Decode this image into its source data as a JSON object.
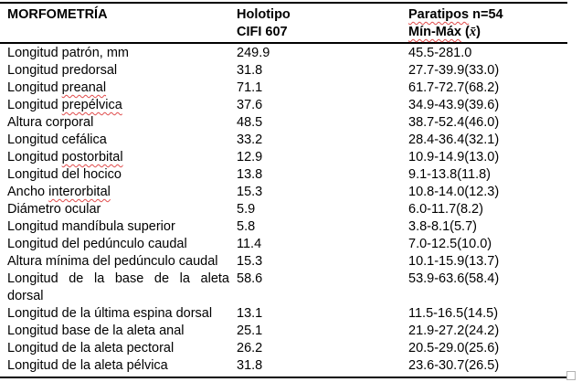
{
  "table": {
    "header": {
      "col1": "MORFOMETRÍA",
      "col2_line1": "Holotipo",
      "col2_line2": "CIFI 607",
      "col3_line1_misspelled": "Paratipos",
      "col3_line1_rest": " n=54",
      "col3_line2_misspelled": "Mín-Máx",
      "col3_line2_open": " (",
      "col3_mean_symbol": "x̄",
      "col3_line2_close": ")"
    },
    "rows": [
      {
        "label": "Longitud patrón, mm",
        "holotipo": "249.9",
        "paratipos": "45.5-281.0"
      },
      {
        "label": "Longitud predorsal",
        "holotipo": "31.8",
        "paratipos": "27.7-39.9(33.0)"
      },
      {
        "label": "Longitud preanal",
        "squiggle": "preanal",
        "holotipo": "71.1",
        "paratipos": "61.7-72.7(68.2)"
      },
      {
        "label": "Longitud prepélvica",
        "squiggle": "prepélvica",
        "holotipo": "37.6",
        "paratipos": "34.9-43.9(39.6)"
      },
      {
        "label": "Altura corporal",
        "holotipo": "48.5",
        "paratipos": "38.7-52.4(46.0)"
      },
      {
        "label": "Longitud cefálica",
        "holotipo": "33.2",
        "paratipos": "28.4-36.4(32.1)"
      },
      {
        "label": "Longitud postorbital",
        "squiggle": "postorbital",
        "holotipo": "12.9",
        "paratipos": "10.9-14.9(13.0)"
      },
      {
        "label": "Longitud del hocico",
        "holotipo": "13.8",
        "paratipos": "9.1-13.8(11.8)"
      },
      {
        "label": "Ancho interorbital",
        "squiggle": "interorbital",
        "holotipo": "15.3",
        "paratipos": "10.8-14.0(12.3)"
      },
      {
        "label": "Diámetro ocular",
        "holotipo": "5.9",
        "paratipos": "6.0-11.7(8.2)"
      },
      {
        "label": "Longitud mandíbula superior",
        "holotipo": "5.8",
        "paratipos": "3.8-8.1(5.7)"
      },
      {
        "label": "Longitud del pedúnculo caudal",
        "holotipo": "11.4",
        "paratipos": "7.0-12.5(10.0)"
      },
      {
        "label": "Altura mínima del pedúnculo caudal",
        "holotipo": "15.3",
        "paratipos": "10.1-15.9(13.7)"
      },
      {
        "label": "Longitud de la base de la aleta",
        "label2": "dorsal",
        "holotipo": "58.6",
        "paratipos": "53.9-63.6(58.4)"
      },
      {
        "label": "Longitud de la última espina dorsal",
        "holotipo": "13.1",
        "paratipos": "11.5-16.5(14.5)"
      },
      {
        "label": "Longitud base de la aleta anal",
        "holotipo": "25.1",
        "paratipos": "21.9-27.2(24.2)"
      },
      {
        "label": "Longitud de la aleta pectoral",
        "holotipo": "26.2",
        "paratipos": "20.5-29.0(25.6)"
      },
      {
        "label": "Longitud de la aleta pélvica",
        "holotipo": "31.8",
        "paratipos": "23.6-30.7(26.5)"
      }
    ]
  },
  "colors": {
    "border": "#000000",
    "squiggle": "#e04c4c",
    "resize_handle": "#b3b3b3",
    "background": "#ffffff",
    "text": "#000000"
  }
}
